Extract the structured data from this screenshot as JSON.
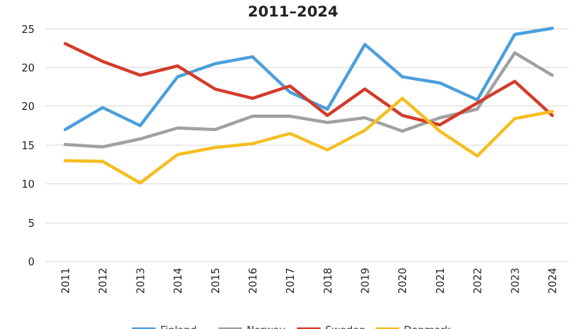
{
  "chart_data": {
    "type": "line",
    "title": "2011–2024",
    "xlabel": "",
    "ylabel": "",
    "categories": [
      "2011",
      "2012",
      "2013",
      "2014",
      "2015",
      "2016",
      "2017",
      "2018",
      "2019",
      "2020",
      "2021",
      "2022",
      "2023",
      "2024"
    ],
    "y_ticks": [
      "0",
      "5",
      "10",
      "15",
      "20",
      "20",
      "25"
    ],
    "grid": true,
    "legend_position": "bottom",
    "series": [
      {
        "name": "Finland",
        "color": "#4a9fdc",
        "values": [
          17.0,
          19.8,
          17.5,
          21.9,
          23.0,
          23.9,
          20.9,
          19.6,
          25.5,
          21.9,
          21.5,
          20.4,
          26.8,
          27.6
        ]
      },
      {
        "name": "Norway",
        "color": "#a0a0a0",
        "values": [
          15.1,
          14.8,
          15.8,
          17.2,
          17.0,
          18.7,
          18.7,
          17.9,
          18.5,
          16.8,
          18.5,
          19.6,
          24.4,
          22.0
        ]
      },
      {
        "name": "Sweden",
        "color": "#d43a2a",
        "values": [
          25.6,
          23.3,
          22.0,
          22.7,
          21.1,
          20.5,
          21.3,
          18.8,
          21.1,
          18.8,
          17.6,
          20.2,
          21.6,
          18.8
        ]
      },
      {
        "name": "Denmark",
        "color": "#f5bd1f",
        "values": [
          13.0,
          12.9,
          10.1,
          13.8,
          14.7,
          15.2,
          16.5,
          14.4,
          16.9,
          20.5,
          16.8,
          13.6,
          18.4,
          19.3
        ]
      }
    ]
  }
}
